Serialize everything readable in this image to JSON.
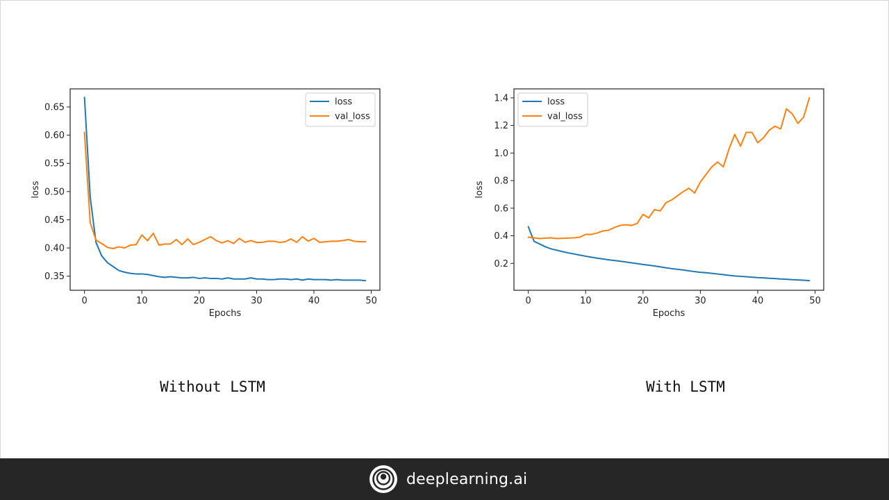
{
  "chart_data": [
    {
      "type": "line",
      "caption": "Without LSTM",
      "xlabel": "Epochs",
      "ylabel": "loss",
      "xlim": [
        -2.5,
        51.5
      ],
      "ylim": [
        0.325,
        0.682
      ],
      "xticks": [
        0,
        10,
        20,
        30,
        40,
        50
      ],
      "yticks": [
        0.35,
        0.4,
        0.45,
        0.5,
        0.55,
        0.6,
        0.65
      ],
      "ytick_labels": [
        "0.35",
        "0.40",
        "0.45",
        "0.50",
        "0.55",
        "0.60",
        "0.65"
      ],
      "legend_position": "upper right",
      "x": [
        0,
        1,
        2,
        3,
        4,
        5,
        6,
        7,
        8,
        9,
        10,
        11,
        12,
        13,
        14,
        15,
        16,
        17,
        18,
        19,
        20,
        21,
        22,
        23,
        24,
        25,
        26,
        27,
        28,
        29,
        30,
        31,
        32,
        33,
        34,
        35,
        36,
        37,
        38,
        39,
        40,
        41,
        42,
        43,
        44,
        45,
        46,
        47,
        48,
        49
      ],
      "series": [
        {
          "name": "loss",
          "color": "#1f77b4",
          "values": [
            0.667,
            0.49,
            0.41,
            0.386,
            0.374,
            0.367,
            0.36,
            0.357,
            0.355,
            0.354,
            0.354,
            0.353,
            0.351,
            0.349,
            0.348,
            0.349,
            0.348,
            0.347,
            0.347,
            0.348,
            0.346,
            0.347,
            0.346,
            0.346,
            0.345,
            0.347,
            0.345,
            0.345,
            0.345,
            0.347,
            0.345,
            0.345,
            0.344,
            0.344,
            0.345,
            0.345,
            0.344,
            0.345,
            0.343,
            0.345,
            0.344,
            0.344,
            0.344,
            0.343,
            0.344,
            0.343,
            0.343,
            0.343,
            0.343,
            0.342
          ]
        },
        {
          "name": "val_loss",
          "color": "#ff7f0e",
          "values": [
            0.605,
            0.445,
            0.414,
            0.408,
            0.401,
            0.399,
            0.402,
            0.4,
            0.405,
            0.406,
            0.423,
            0.413,
            0.426,
            0.405,
            0.407,
            0.407,
            0.415,
            0.406,
            0.416,
            0.406,
            0.41,
            0.415,
            0.42,
            0.413,
            0.409,
            0.413,
            0.408,
            0.417,
            0.41,
            0.413,
            0.41,
            0.41,
            0.412,
            0.412,
            0.41,
            0.411,
            0.416,
            0.41,
            0.42,
            0.412,
            0.417,
            0.41,
            0.411,
            0.412,
            0.412,
            0.413,
            0.415,
            0.412,
            0.411,
            0.411
          ]
        }
      ]
    },
    {
      "type": "line",
      "caption": "With LSTM",
      "xlabel": "Epochs",
      "ylabel": "loss",
      "xlim": [
        -2.5,
        51.5
      ],
      "ylim": [
        0.005,
        1.465
      ],
      "xticks": [
        0,
        10,
        20,
        30,
        40,
        50
      ],
      "yticks": [
        0.2,
        0.4,
        0.6,
        0.8,
        1.0,
        1.2,
        1.4
      ],
      "ytick_labels": [
        "0.2",
        "0.4",
        "0.6",
        "0.8",
        "1.0",
        "1.2",
        "1.4"
      ],
      "legend_position": "upper left",
      "x": [
        0,
        1,
        2,
        3,
        4,
        5,
        6,
        7,
        8,
        9,
        10,
        11,
        12,
        13,
        14,
        15,
        16,
        17,
        18,
        19,
        20,
        21,
        22,
        23,
        24,
        25,
        26,
        27,
        28,
        29,
        30,
        31,
        32,
        33,
        34,
        35,
        36,
        37,
        38,
        39,
        40,
        41,
        42,
        43,
        44,
        45,
        46,
        47,
        48,
        49
      ],
      "series": [
        {
          "name": "loss",
          "color": "#1f77b4",
          "values": [
            0.466,
            0.36,
            0.34,
            0.32,
            0.305,
            0.295,
            0.285,
            0.276,
            0.268,
            0.26,
            0.252,
            0.245,
            0.238,
            0.232,
            0.226,
            0.221,
            0.216,
            0.21,
            0.204,
            0.198,
            0.192,
            0.187,
            0.181,
            0.175,
            0.168,
            0.162,
            0.157,
            0.152,
            0.146,
            0.14,
            0.135,
            0.132,
            0.128,
            0.123,
            0.118,
            0.113,
            0.109,
            0.106,
            0.103,
            0.1,
            0.097,
            0.095,
            0.092,
            0.09,
            0.087,
            0.085,
            0.082,
            0.08,
            0.078,
            0.075
          ]
        },
        {
          "name": "val_loss",
          "color": "#ff7f0e",
          "values": [
            0.39,
            0.385,
            0.38,
            0.383,
            0.385,
            0.38,
            0.382,
            0.384,
            0.385,
            0.39,
            0.41,
            0.41,
            0.42,
            0.435,
            0.44,
            0.46,
            0.475,
            0.48,
            0.475,
            0.49,
            0.555,
            0.53,
            0.59,
            0.58,
            0.64,
            0.66,
            0.69,
            0.72,
            0.745,
            0.71,
            0.79,
            0.845,
            0.9,
            0.935,
            0.9,
            1.03,
            1.135,
            1.05,
            1.15,
            1.15,
            1.075,
            1.11,
            1.165,
            1.195,
            1.175,
            1.32,
            1.285,
            1.215,
            1.26,
            1.4
          ]
        }
      ]
    }
  ],
  "footer": {
    "brand_name": "deeplearning.ai",
    "logo_icon": "deeplearning-logo-icon",
    "background": "#262626"
  }
}
